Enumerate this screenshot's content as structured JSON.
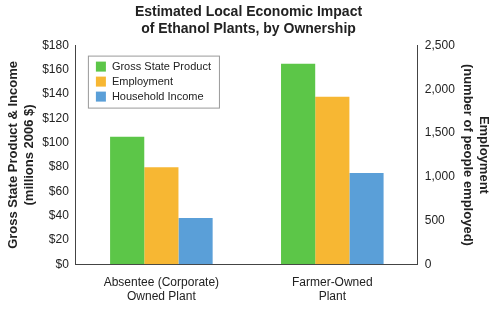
{
  "chart_data": {
    "type": "bar",
    "title": [
      "Estimated Local Economic Impact",
      "of Ethanol Plants, by Ownership"
    ],
    "categories": [
      [
        "Absentee (Corporate)",
        "Owned Plant"
      ],
      [
        "Farmer-Owned",
        "Plant"
      ]
    ],
    "ylabel": [
      "Gross State Product & Income",
      "(millions 2006 $)"
    ],
    "y2label": [
      "Employment",
      "(number of people employed)"
    ],
    "series": [
      {
        "name": "Gross State Product",
        "color": "#5cc648",
        "values": [
          105,
          165
        ]
      },
      {
        "name": "Employment",
        "color": "#f7b733",
        "values": [
          1110,
          1915
        ],
        "axis": "y2"
      },
      {
        "name": "Household Income",
        "color": "#5a9fd8",
        "values": [
          38,
          75
        ]
      }
    ],
    "ylim": [
      0,
      180
    ],
    "yticks": [
      {
        "value": 0,
        "label": "$0"
      },
      {
        "value": 20,
        "label": "$20"
      },
      {
        "value": 40,
        "label": "$40"
      },
      {
        "value": 60,
        "label": "$60"
      },
      {
        "value": 80,
        "label": "$80"
      },
      {
        "value": 100,
        "label": "$100"
      },
      {
        "value": 120,
        "label": "$120"
      },
      {
        "value": 140,
        "label": "$140"
      },
      {
        "value": 160,
        "label": "$160"
      },
      {
        "value": 180,
        "label": "$180"
      }
    ],
    "y2lim": [
      0,
      2500
    ],
    "y2ticks": [
      0,
      500,
      {
        "value": 1000,
        "label": "1,000"
      },
      {
        "value": 1500,
        "label": "1,500"
      },
      {
        "value": 2000,
        "label": "2,000"
      },
      {
        "value": 2500,
        "label": "2,500"
      }
    ],
    "grid": false,
    "legend": "upper left"
  }
}
